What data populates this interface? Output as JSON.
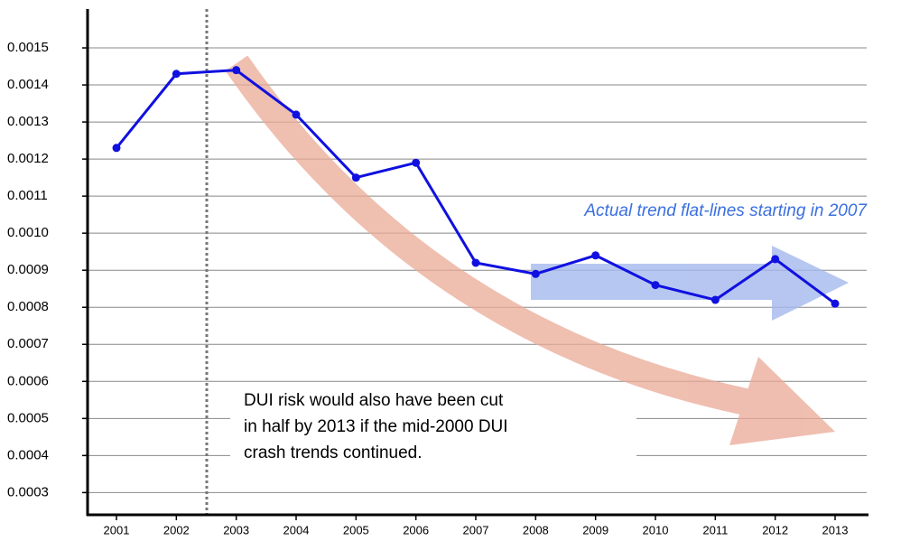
{
  "chart_data": {
    "type": "line",
    "categories": [
      "2001",
      "2002",
      "2003",
      "2004",
      "2005",
      "2006",
      "2007",
      "2008",
      "2009",
      "2010",
      "2011",
      "2012",
      "2013"
    ],
    "series": [
      {
        "name": "DUI risk",
        "color": "#1010e0",
        "values": [
          0.00123,
          0.00143,
          0.00144,
          0.00132,
          0.00115,
          0.00119,
          0.00092,
          0.00089,
          0.00094,
          0.00086,
          0.00082,
          0.00093,
          0.00081
        ]
      }
    ],
    "ylim": [
      0.00024,
      0.0016
    ],
    "yticks": [
      0.0003,
      0.0004,
      0.0005,
      0.0006,
      0.0007,
      0.0008,
      0.0009,
      {
        "value": 0.001,
        "label": "0.0010"
      },
      0.0011,
      0.0012,
      0.0013,
      0.0014,
      0.0015
    ],
    "grid": true,
    "annotations": {
      "flat": "Actual trend flat-lines starting in 2007",
      "note": [
        "DUI risk would also have been cut",
        "in half by 2013 if the mid-2000 DUI",
        "crash trends continued."
      ]
    }
  }
}
